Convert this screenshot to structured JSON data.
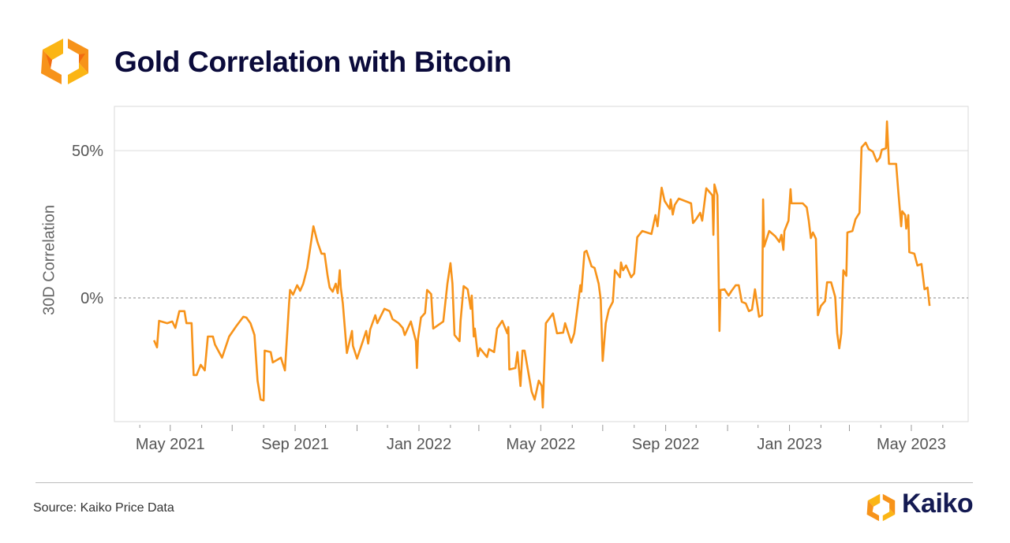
{
  "header": {
    "title": "Gold Correlation with Bitcoin",
    "logo": "Kaiko"
  },
  "footer": {
    "source": "Source: Kaiko Price Data",
    "brand": "Kaiko"
  },
  "colors": {
    "line": "#f7931a",
    "title": "#0b0b3b",
    "brand_orange": "#f7931a",
    "brand_yellow": "#fbb514",
    "brand_navy": "#141a52"
  },
  "chart_data": {
    "type": "line",
    "title": "Gold Correlation with Bitcoin",
    "xlabel": "",
    "ylabel": "30D Correlation",
    "xlim": [
      "2021-03-07",
      "2023-06-26"
    ],
    "ylim": [
      -42,
      65
    ],
    "y_ticks": [
      {
        "value": 0,
        "label": "0%"
      },
      {
        "value": 50,
        "label": "50%"
      }
    ],
    "x_tick_labels": [
      {
        "date": "2021-05-01",
        "label": "May 2021"
      },
      {
        "date": "2021-09-01",
        "label": "Sep 2021"
      },
      {
        "date": "2022-01-01",
        "label": "Jan 2022"
      },
      {
        "date": "2022-05-01",
        "label": "May 2022"
      },
      {
        "date": "2022-09-01",
        "label": "Sep 2022"
      },
      {
        "date": "2023-01-01",
        "label": "Jan 2023"
      },
      {
        "date": "2023-05-01",
        "label": "May 2023"
      }
    ],
    "grid": "horizontal at 50%; dashed zero line",
    "unit": "%",
    "x": [
      "2021-04-15",
      "2021-04-18",
      "2021-04-20",
      "2021-04-28",
      "2021-05-03",
      "2021-05-06",
      "2021-05-10",
      "2021-05-15",
      "2021-05-17",
      "2021-05-22",
      "2021-05-24",
      "2021-05-27",
      "2021-05-31",
      "2021-06-04",
      "2021-06-07",
      "2021-06-12",
      "2021-06-14",
      "2021-06-21",
      "2021-06-28",
      "2021-07-05",
      "2021-07-12",
      "2021-07-15",
      "2021-07-19",
      "2021-07-23",
      "2021-07-26",
      "2021-07-29",
      "2021-08-01",
      "2021-08-02",
      "2021-08-08",
      "2021-08-10",
      "2021-08-18",
      "2021-08-22",
      "2021-08-26",
      "2021-08-27",
      "2021-08-30",
      "2021-09-03",
      "2021-09-06",
      "2021-09-09",
      "2021-09-13",
      "2021-09-19",
      "2021-09-23",
      "2021-09-27",
      "2021-09-30",
      "2021-10-03",
      "2021-10-05",
      "2021-10-08",
      "2021-10-11",
      "2021-10-13",
      "2021-10-15",
      "2021-10-16",
      "2021-10-18",
      "2021-10-22",
      "2021-10-27",
      "2021-10-28",
      "2021-11-01",
      "2021-11-07",
      "2021-11-10",
      "2021-11-12",
      "2021-11-14",
      "2021-11-19",
      "2021-11-21",
      "2021-11-28",
      "2021-12-03",
      "2021-12-06",
      "2021-12-12",
      "2021-12-16",
      "2021-12-18",
      "2021-12-24",
      "2021-12-29",
      "2021-12-30",
      "2021-12-31",
      "2022-01-03",
      "2022-01-07",
      "2022-01-09",
      "2022-01-13",
      "2022-01-15",
      "2022-01-25",
      "2022-01-29",
      "2022-02-01",
      "2022-02-03",
      "2022-02-05",
      "2022-02-10",
      "2022-02-11",
      "2022-02-14",
      "2022-02-18",
      "2022-02-21",
      "2022-02-22",
      "2022-02-24",
      "2022-02-25",
      "2022-02-28",
      "2022-03-02",
      "2022-03-09",
      "2022-03-11",
      "2022-03-16",
      "2022-03-19",
      "2022-03-24",
      "2022-03-29",
      "2022-03-30",
      "2022-03-31",
      "2022-04-06",
      "2022-04-08",
      "2022-04-11",
      "2022-04-13",
      "2022-04-15",
      "2022-04-22",
      "2022-04-25",
      "2022-04-29",
      "2022-05-02",
      "2022-05-03",
      "2022-05-06",
      "2022-05-13",
      "2022-05-17",
      "2022-05-23",
      "2022-05-25",
      "2022-05-31",
      "2022-06-03",
      "2022-06-09",
      "2022-06-10",
      "2022-06-13",
      "2022-06-15",
      "2022-06-20",
      "2022-06-23",
      "2022-06-27",
      "2022-06-29",
      "2022-07-01",
      "2022-07-04",
      "2022-07-07",
      "2022-07-11",
      "2022-07-13",
      "2022-07-18",
      "2022-07-19",
      "2022-07-21",
      "2022-07-24",
      "2022-07-29",
      "2022-08-01",
      "2022-08-04",
      "2022-08-09",
      "2022-08-18",
      "2022-08-22",
      "2022-08-24",
      "2022-08-28",
      "2022-08-31",
      "2022-09-05",
      "2022-09-06",
      "2022-09-08",
      "2022-09-10",
      "2022-09-14",
      "2022-09-26",
      "2022-09-28",
      "2022-10-01",
      "2022-10-05",
      "2022-10-07",
      "2022-10-11",
      "2022-10-17",
      "2022-10-18",
      "2022-10-19",
      "2022-10-22",
      "2022-10-24",
      "2022-10-25",
      "2022-10-29",
      "2022-11-02",
      "2022-11-05",
      "2022-11-09",
      "2022-11-12",
      "2022-11-15",
      "2022-11-19",
      "2022-11-22",
      "2022-11-25",
      "2022-11-28",
      "2022-12-02",
      "2022-12-05",
      "2022-12-06",
      "2022-12-07",
      "2022-12-12",
      "2022-12-18",
      "2022-12-22",
      "2022-12-24",
      "2022-12-26",
      "2022-12-27",
      "2022-12-31",
      "2023-01-02",
      "2023-01-03",
      "2023-01-14",
      "2023-01-18",
      "2023-01-20",
      "2023-01-22",
      "2023-01-24",
      "2023-01-27",
      "2023-01-29",
      "2023-02-01",
      "2023-02-05",
      "2023-02-07",
      "2023-02-11",
      "2023-02-15",
      "2023-02-17",
      "2023-02-19",
      "2023-02-21",
      "2023-02-23",
      "2023-02-26",
      "2023-02-27",
      "2023-03-04",
      "2023-03-07",
      "2023-03-11",
      "2023-03-13",
      "2023-03-17",
      "2023-03-20",
      "2023-03-24",
      "2023-03-28",
      "2023-03-31",
      "2023-04-02",
      "2023-04-06",
      "2023-04-07",
      "2023-04-09",
      "2023-04-16",
      "2023-04-18",
      "2023-04-21",
      "2023-04-22",
      "2023-04-25",
      "2023-04-26",
      "2023-04-28",
      "2023-04-29",
      "2023-05-04",
      "2023-05-07",
      "2023-05-11",
      "2023-05-14",
      "2023-05-17",
      "2023-05-19"
    ],
    "series": [
      {
        "values": [
          -14.4,
          -16.8,
          -7.8,
          -8.6,
          -8.0,
          -10.2,
          -4.5,
          -4.5,
          -8.6,
          -8.6,
          -26.2,
          -26.2,
          -22.7,
          -24.6,
          -13.1,
          -13.1,
          -15.8,
          -20.3,
          -13.1,
          -9.6,
          -6.4,
          -6.7,
          -8.6,
          -12.6,
          -28.1,
          -34.5,
          -34.8,
          -17.9,
          -18.4,
          -21.9,
          -20.3,
          -24.6,
          -2.1,
          2.7,
          1.1,
          4.3,
          2.4,
          4.8,
          10.2,
          24.3,
          19.0,
          15.0,
          15.0,
          7.5,
          3.5,
          2.1,
          4.8,
          1.6,
          9.4,
          3.5,
          -1.9,
          -18.7,
          -11.2,
          -16.3,
          -20.6,
          -14.4,
          -11.2,
          -15.5,
          -10.7,
          -5.9,
          -8.6,
          -3.7,
          -4.5,
          -7.2,
          -8.6,
          -10.2,
          -12.6,
          -8.0,
          -14.7,
          -23.8,
          -13.9,
          -6.7,
          -5.1,
          2.7,
          1.3,
          -10.4,
          -8.0,
          4.8,
          11.8,
          4.8,
          -12.6,
          -14.7,
          -7.8,
          4.0,
          2.9,
          -3.7,
          0.8,
          -13.1,
          -10.4,
          -19.8,
          -17.1,
          -20.1,
          -17.4,
          -18.4,
          -10.4,
          -7.8,
          -12.0,
          -9.9,
          -24.3,
          -23.8,
          -18.4,
          -29.9,
          -17.9,
          -17.9,
          -31.8,
          -34.5,
          -28.1,
          -29.9,
          -37.2,
          -8.6,
          -5.3,
          -12.0,
          -11.8,
          -8.6,
          -15.2,
          -12.0,
          4.3,
          2.1,
          15.5,
          16.0,
          10.7,
          10.2,
          4.8,
          -0.5,
          -21.4,
          -8.6,
          -4.0,
          -1.3,
          9.4,
          7.0,
          12.0,
          9.4,
          11.0,
          7.0,
          8.3,
          20.6,
          22.7,
          21.7,
          28.1,
          24.3,
          37.4,
          32.9,
          30.2,
          33.4,
          28.3,
          31.6,
          33.7,
          32.1,
          25.4,
          26.7,
          28.9,
          26.2,
          37.2,
          34.8,
          21.4,
          38.5,
          34.8,
          -11.2,
          2.7,
          2.9,
          0.8,
          2.4,
          4.3,
          4.3,
          -1.3,
          -1.9,
          -4.5,
          -4.0,
          2.9,
          -6.4,
          -5.9,
          33.4,
          17.4,
          22.7,
          20.9,
          19.0,
          21.4,
          16.3,
          22.7,
          26.2,
          36.9,
          32.1,
          32.1,
          30.7,
          26.2,
          20.3,
          22.2,
          20.1,
          -5.9,
          -2.7,
          -1.1,
          5.3,
          5.3,
          0.3,
          -12.0,
          -17.1,
          -12.0,
          9.4,
          7.5,
          22.2,
          22.7,
          26.7,
          28.9,
          51.1,
          52.7,
          50.5,
          49.7,
          46.3,
          47.6,
          50.3,
          50.8,
          59.9,
          45.5,
          45.5,
          36.9,
          24.3,
          29.4,
          28.1,
          23.5,
          28.1,
          15.5,
          15.0,
          11.0,
          11.5,
          2.9,
          3.5,
          -2.7
        ]
      }
    ]
  }
}
